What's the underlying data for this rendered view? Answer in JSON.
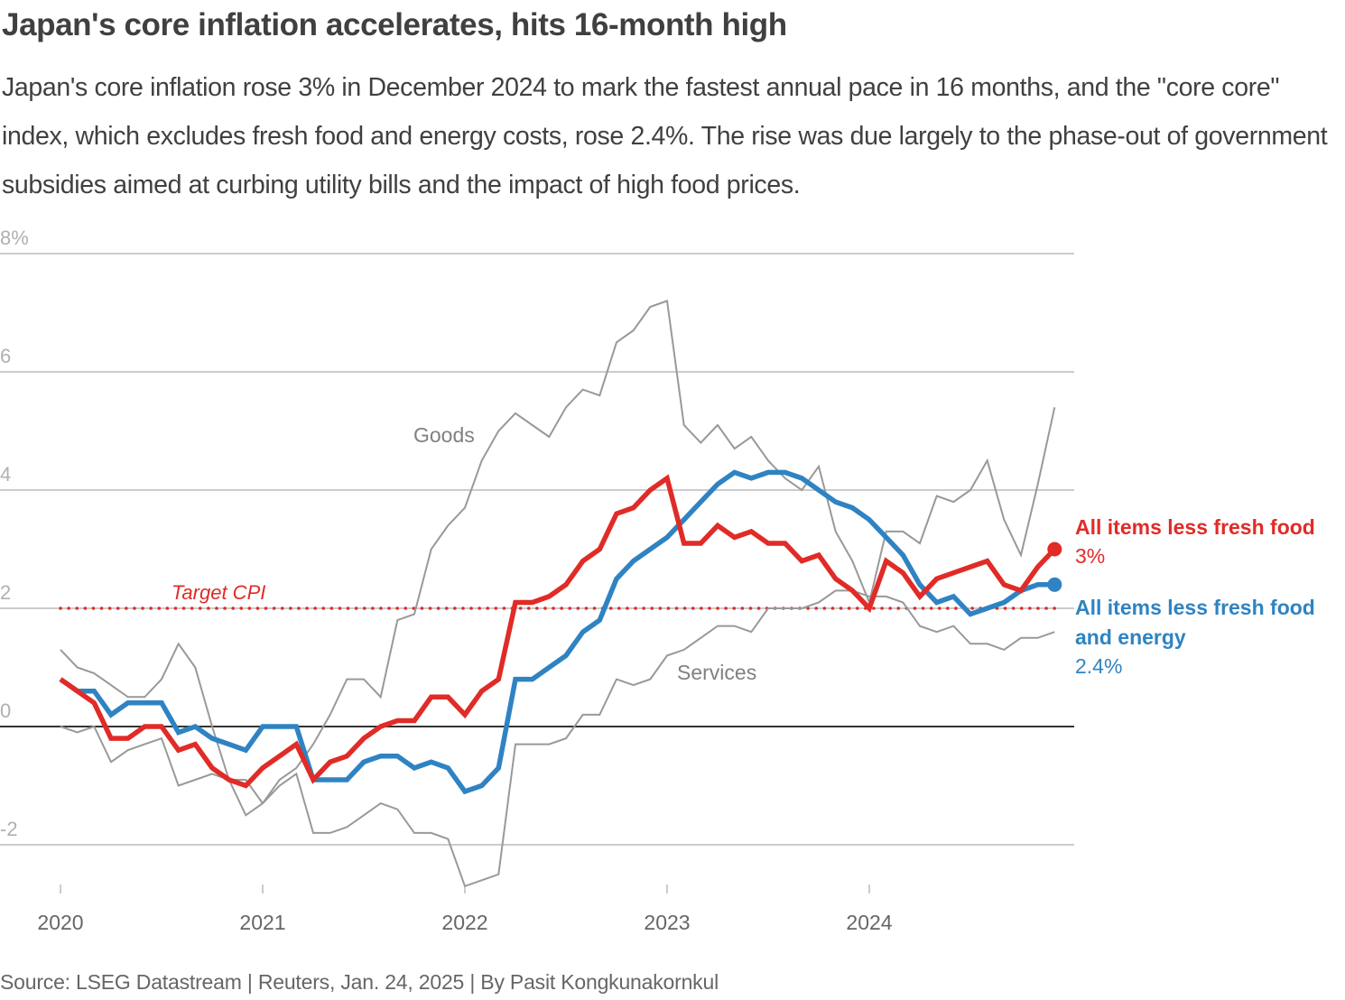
{
  "header": {
    "title": "Japan's core inflation accelerates, hits 16-month high",
    "subtitle": "Japan's core inflation rose 3% in December 2024 to mark the fastest annual pace in 16 months, and the \"core core\" index, which excludes fresh food and energy costs, rose 2.4%. The rise was due largely to the phase-out of government subsidies aimed at curbing utility bills and the impact of high food prices."
  },
  "footer": {
    "source": "Source: LSEG Datastream | Reuters, Jan. 24, 2025 | By Pasit Kongkunakornkul"
  },
  "colors": {
    "core": "#e02b27",
    "core_core": "#2f83c2",
    "goods": "#999999",
    "services": "#999999",
    "gridline": "#cccccc",
    "zero_line": "#333333"
  },
  "chart_data": {
    "type": "line",
    "title": "Japan's core inflation accelerates, hits 16-month high",
    "xlabel": "",
    "ylabel": "",
    "x_start": "2020-01",
    "x_frequency": "monthly",
    "x_ticks": [
      "2020",
      "2021",
      "2022",
      "2023",
      "2024"
    ],
    "y_ticks": [
      {
        "value": 8,
        "label": "8%"
      },
      {
        "value": 6,
        "label": "6"
      },
      {
        "value": 4,
        "label": "4"
      },
      {
        "value": 2,
        "label": "2"
      },
      {
        "value": 0,
        "label": "0"
      },
      {
        "value": -2,
        "label": "-2"
      }
    ],
    "ylim": [
      -2.8,
      8
    ],
    "grid": true,
    "legend": "right (direct labels at line ends)",
    "reference_line": {
      "label": "Target CPI",
      "value": 2,
      "style": "dotted"
    },
    "series": [
      {
        "key": "goods",
        "name": "Goods",
        "label_position": "inline",
        "values": [
          1.3,
          1.0,
          0.9,
          0.7,
          0.5,
          0.5,
          0.8,
          1.4,
          1.0,
          0.0,
          -0.9,
          -1.5,
          -1.3,
          -0.9,
          -0.7,
          -0.3,
          0.2,
          0.8,
          0.8,
          0.5,
          1.8,
          1.9,
          3.0,
          3.4,
          3.7,
          4.5,
          5.0,
          5.3,
          5.1,
          4.9,
          5.4,
          5.7,
          5.6,
          6.5,
          6.7,
          7.1,
          7.2,
          5.1,
          4.8,
          5.1,
          4.7,
          4.9,
          4.5,
          4.2,
          4.0,
          4.4,
          3.3,
          2.8,
          2.1,
          3.3,
          3.3,
          3.1,
          3.9,
          3.8,
          4.0,
          4.5,
          3.5,
          2.9,
          4.1,
          5.4
        ]
      },
      {
        "key": "services",
        "name": "Services",
        "label_position": "inline",
        "values": [
          0.0,
          -0.1,
          0.0,
          -0.6,
          -0.4,
          -0.3,
          -0.2,
          -1.0,
          -0.9,
          -0.8,
          -0.9,
          -0.9,
          -1.3,
          -1.0,
          -0.8,
          -1.8,
          -1.8,
          -1.7,
          -1.5,
          -1.3,
          -1.4,
          -1.8,
          -1.8,
          -1.9,
          -2.7,
          -2.6,
          -2.5,
          -0.3,
          -0.3,
          -0.3,
          -0.2,
          0.2,
          0.2,
          0.8,
          0.7,
          0.8,
          1.2,
          1.3,
          1.5,
          1.7,
          1.7,
          1.6,
          2.0,
          2.0,
          2.0,
          2.1,
          2.3,
          2.3,
          2.2,
          2.2,
          2.1,
          1.7,
          1.6,
          1.7,
          1.4,
          1.4,
          1.3,
          1.5,
          1.5,
          1.6
        ]
      },
      {
        "key": "core_core",
        "name": "All items less fresh food and energy",
        "name_lines": [
          "All items less fresh food",
          "and energy"
        ],
        "latest_label": "2.4%",
        "values": [
          0.8,
          0.6,
          0.6,
          0.2,
          0.4,
          0.4,
          0.4,
          -0.1,
          0.0,
          -0.2,
          -0.3,
          -0.4,
          0.0,
          0.0,
          0.0,
          -0.9,
          -0.9,
          -0.9,
          -0.6,
          -0.5,
          -0.5,
          -0.7,
          -0.6,
          -0.7,
          -1.1,
          -1.0,
          -0.7,
          0.8,
          0.8,
          1.0,
          1.2,
          1.6,
          1.8,
          2.5,
          2.8,
          3.0,
          3.2,
          3.5,
          3.8,
          4.1,
          4.3,
          4.2,
          4.3,
          4.3,
          4.2,
          4.0,
          3.8,
          3.7,
          3.5,
          3.2,
          2.9,
          2.4,
          2.1,
          2.2,
          1.9,
          2.0,
          2.1,
          2.3,
          2.4,
          2.4
        ]
      },
      {
        "key": "core",
        "name": "All items less fresh food",
        "name_lines": [
          "All items less fresh food"
        ],
        "latest_label": "3%",
        "values": [
          0.8,
          0.6,
          0.4,
          -0.2,
          -0.2,
          0.0,
          0.0,
          -0.4,
          -0.3,
          -0.7,
          -0.9,
          -1.0,
          -0.7,
          -0.5,
          -0.3,
          -0.9,
          -0.6,
          -0.5,
          -0.2,
          0.0,
          0.1,
          0.1,
          0.5,
          0.5,
          0.2,
          0.6,
          0.8,
          2.1,
          2.1,
          2.2,
          2.4,
          2.8,
          3.0,
          3.6,
          3.7,
          4.0,
          4.2,
          3.1,
          3.1,
          3.4,
          3.2,
          3.3,
          3.1,
          3.1,
          2.8,
          2.9,
          2.5,
          2.3,
          2.0,
          2.8,
          2.6,
          2.2,
          2.5,
          2.6,
          2.7,
          2.8,
          2.4,
          2.3,
          2.7,
          3.0
        ]
      }
    ]
  }
}
